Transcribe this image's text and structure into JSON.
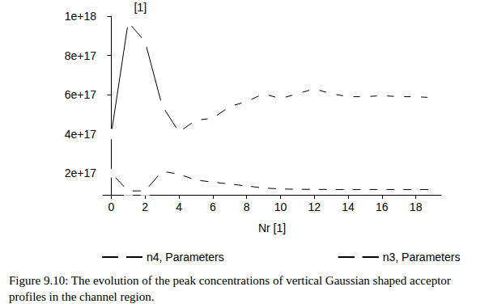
{
  "chart_data": {
    "type": "line",
    "title": "Figure 9.10: The evolution of the peak concentrations of vertical Gaussian shaped acceptor profiles in the channel region.",
    "x_label": "Nr [1]",
    "y_label": "[1]",
    "x": [
      0,
      1,
      2,
      3,
      4,
      5,
      6,
      7,
      8,
      9,
      10,
      11,
      12,
      13,
      14,
      15,
      16,
      17,
      18,
      19
    ],
    "series": [
      {
        "name": "n4, Parameters",
        "color": "#000000",
        "marker": "square",
        "values": [
          2e+17,
          1.1e+17,
          1.1e+17,
          2.1e+17,
          1.95e+17,
          1.65e+17,
          1.55e+17,
          1.45e+17,
          1.35e+17,
          1.25e+17,
          1.2e+17,
          1.18e+17,
          1.18e+17,
          1.17e+17,
          1.17e+17,
          1.17e+17,
          1.17e+17,
          1.17e+17,
          1.17e+17,
          1.17e+17
        ]
      },
      {
        "name": "n3, Parameters",
        "color": "#000000",
        "marker": "circle",
        "values": [
          4e+17,
          9.7e+17,
          8.7e+17,
          5.45e+17,
          4.1e+17,
          4.7e+17,
          4.8e+17,
          5.4e+17,
          5.65e+17,
          6.05e+17,
          5.8e+17,
          6.05e+17,
          6.3e+17,
          6.05e+17,
          5.9e+17,
          5.9e+17,
          5.95e+17,
          5.9e+17,
          5.9e+17,
          5.85e+17
        ]
      }
    ],
    "xlim": [
      -0.5,
      19.5
    ],
    "xticks": [
      0,
      2,
      4,
      6,
      8,
      10,
      12,
      14,
      16,
      18
    ],
    "ylim": [
      9e+16,
      1e+18
    ],
    "yticks": [
      {
        "value": 2e+17,
        "label": "2e+17"
      },
      {
        "value": 4e+17,
        "label": "4e+17"
      },
      {
        "value": 6e+17,
        "label": "6e+17"
      },
      {
        "value": 8e+17,
        "label": "8e+17"
      },
      {
        "value": 1e+18,
        "label": "1e+18"
      }
    ],
    "grid": false,
    "legend": "bottom"
  }
}
